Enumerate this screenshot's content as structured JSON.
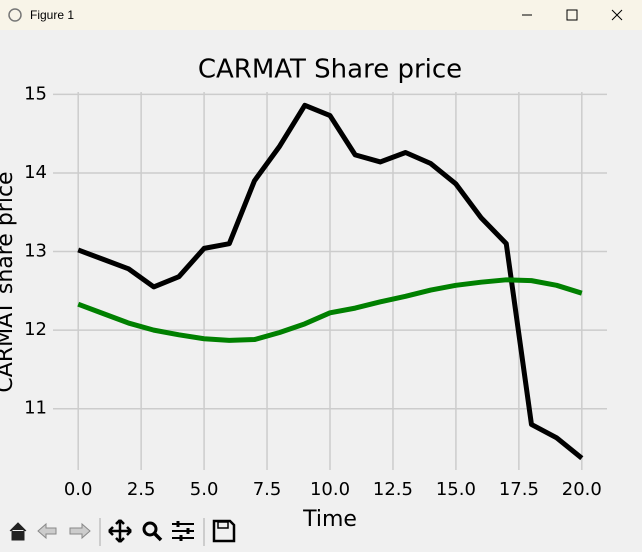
{
  "window": {
    "title": "Figure 1"
  },
  "chart_data": {
    "type": "line",
    "title": "CARMAT Share price",
    "x_label": "Time",
    "y_label": "CARMAT share price",
    "x": [
      0,
      1,
      2,
      3,
      4,
      5,
      6,
      7,
      8,
      9,
      10,
      11,
      12,
      13,
      14,
      15,
      16,
      17,
      18,
      19,
      20
    ],
    "series": [
      {
        "color": "#000000",
        "values": [
          13.02,
          12.9,
          12.78,
          12.55,
          12.68,
          13.04,
          13.1,
          13.9,
          14.34,
          14.86,
          14.73,
          14.23,
          14.14,
          14.26,
          14.12,
          13.86,
          13.43,
          13.1,
          10.8,
          10.63,
          10.37
        ]
      },
      {
        "color": "#008000",
        "values": [
          12.33,
          12.21,
          12.09,
          12.0,
          11.94,
          11.89,
          11.87,
          11.88,
          11.97,
          12.08,
          12.22,
          12.28,
          12.36,
          12.43,
          12.51,
          12.57,
          12.61,
          12.64,
          12.63,
          12.57,
          12.47
        ]
      }
    ],
    "xlim": [
      -1,
      21
    ],
    "xticks": [
      {
        "value": 0,
        "label": "0.0"
      },
      {
        "value": 2.5,
        "label": "2.5"
      },
      {
        "value": 5,
        "label": "5.0"
      },
      {
        "value": 7.5,
        "label": "7.5"
      },
      {
        "value": 10,
        "label": "10.0"
      },
      {
        "value": 12.5,
        "label": "12.5"
      },
      {
        "value": 15,
        "label": "15.0"
      },
      {
        "value": 17.5,
        "label": "17.5"
      },
      {
        "value": 20,
        "label": "20.0"
      }
    ],
    "ylim": [
      10.22,
      15.03
    ],
    "yticks": [
      11,
      12,
      13,
      14,
      15
    ],
    "grid": true
  }
}
